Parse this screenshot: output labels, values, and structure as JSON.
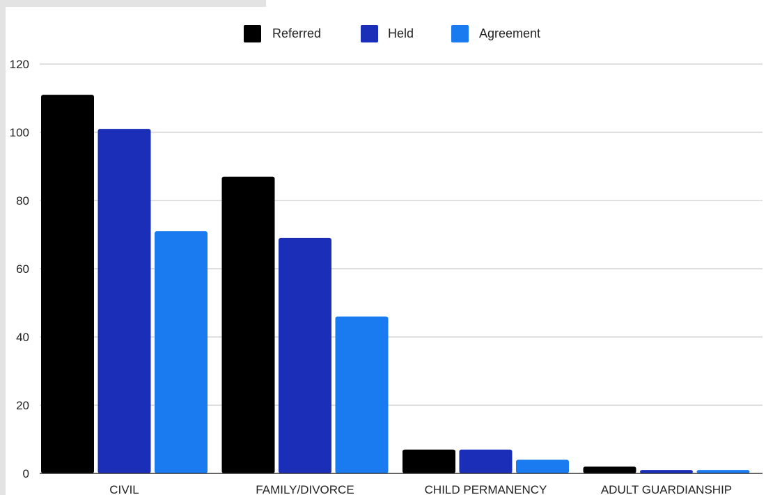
{
  "chart_data": {
    "type": "bar",
    "title": "",
    "xlabel": "",
    "ylabel": "",
    "categories": [
      "CIVIL",
      "FAMILY/DIVORCE",
      "CHILD PERMANENCY",
      "ADULT GUARDIANSHIP"
    ],
    "series": [
      {
        "name": "Referred",
        "color": "#000000",
        "values": [
          111,
          87,
          7,
          2
        ]
      },
      {
        "name": "Held",
        "color": "#1a2eb8",
        "values": [
          101,
          69,
          7,
          1
        ]
      },
      {
        "name": "Agreement",
        "color": "#1a7af0",
        "values": [
          71,
          46,
          4,
          1
        ]
      }
    ],
    "ylim": [
      0,
      120
    ],
    "yticks": [
      0,
      20,
      40,
      60,
      80,
      100,
      120
    ],
    "grid": true,
    "legend": "top-center"
  }
}
